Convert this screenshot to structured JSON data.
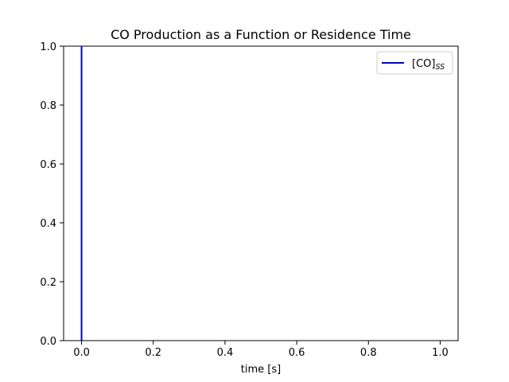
{
  "chart_data": {
    "type": "line",
    "title": "CO Production as a Function or Residence Time",
    "xlabel": "time [s]",
    "ylabel": "",
    "xlim": [
      -0.05,
      1.05
    ],
    "ylim": [
      0.0,
      1.0
    ],
    "x_ticks": [
      "0.0",
      "0.2",
      "0.4",
      "0.6",
      "0.8",
      "1.0"
    ],
    "y_ticks": [
      "0.0",
      "0.2",
      "0.4",
      "0.6",
      "0.8",
      "1.0"
    ],
    "grid": false,
    "legend_position": "upper right",
    "series": [
      {
        "name": "[CO]",
        "name_subscript": "SS",
        "color": "#0000cc",
        "x": [
          0.0,
          0.0
        ],
        "y": [
          0.0,
          1.0
        ]
      }
    ]
  }
}
